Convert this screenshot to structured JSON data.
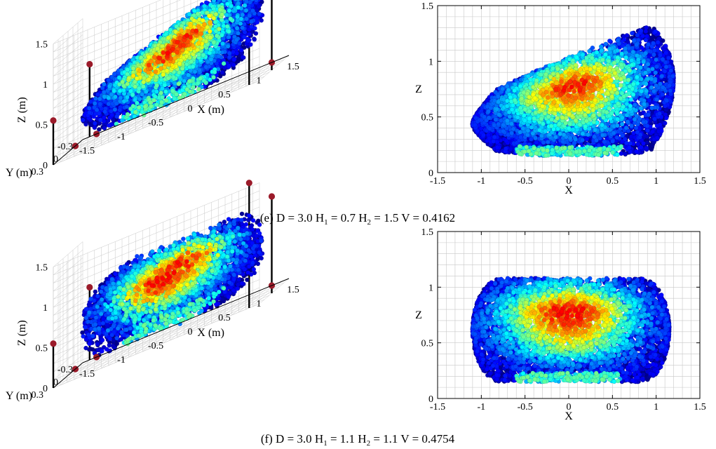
{
  "chart_data": [
    {
      "type": "scatter",
      "view": "3d",
      "x_ticks": [
        "-1.5",
        "-1",
        "-0.5",
        "0",
        "0.5",
        "1",
        "1.5"
      ],
      "y_ticks": [
        "0.3",
        "0",
        "-0.3"
      ],
      "z_ticks": [
        "0",
        "0.5",
        "1",
        "1.5"
      ],
      "xlabel": "X (m)",
      "ylabel": "Y (m)",
      "zlabel": "Z (m)",
      "xlim": [
        -1.5,
        1.5
      ],
      "ylim": [
        -0.3,
        0.3
      ],
      "zlim": [
        0,
        1.5
      ],
      "grid": true,
      "point_cloud": {
        "x_range": [
          -1.1,
          1.15
        ],
        "z_range": [
          0.15,
          1.35
        ],
        "shape": "tilted",
        "hot_center_x": 0.0,
        "hot_center_z": 0.85
      }
    },
    {
      "type": "scatter",
      "view": "xz",
      "x_ticks": [
        "-1.5",
        "-1",
        "-0.5",
        "0",
        "0.5",
        "1",
        "1.5"
      ],
      "z_ticks": [
        "0",
        "0.5",
        "1",
        "1.5"
      ],
      "xlabel": "X",
      "ylabel": "Z",
      "xlim": [
        -1.5,
        1.5
      ],
      "ylim": [
        0,
        1.5
      ],
      "grid": true,
      "point_cloud": {
        "x_range": [
          -1.1,
          1.2
        ],
        "z_range": [
          0.15,
          1.4
        ],
        "shape": "tilted",
        "hot_center_x": 0.0,
        "hot_center_z": 0.85
      }
    },
    {
      "type": "scatter",
      "view": "3d",
      "x_ticks": [
        "-1.5",
        "-1",
        "-0.5",
        "0",
        "0.5",
        "1",
        "1.5"
      ],
      "y_ticks": [
        "0.3",
        "0",
        "-0.3"
      ],
      "z_ticks": [
        "0",
        "0.5",
        "1",
        "1.5"
      ],
      "xlabel": "X (m)",
      "ylabel": "Y (m)",
      "zlabel": "Z (m)",
      "xlim": [
        -1.5,
        1.5
      ],
      "ylim": [
        -0.3,
        0.3
      ],
      "zlim": [
        0,
        1.5
      ],
      "grid": true,
      "point_cloud": {
        "x_range": [
          -1.1,
          1.15
        ],
        "z_range": [
          0.15,
          1.05
        ],
        "shape": "level",
        "hot_center_x": 0.0,
        "hot_center_z": 0.8
      }
    },
    {
      "type": "scatter",
      "view": "xz",
      "x_ticks": [
        "-1.5",
        "-1",
        "-0.5",
        "0",
        "0.5",
        "1",
        "1.5"
      ],
      "z_ticks": [
        "0",
        "0.5",
        "1",
        "1.5"
      ],
      "xlabel": "X",
      "ylabel": "Z",
      "xlim": [
        -1.5,
        1.5
      ],
      "ylim": [
        0,
        1.5
      ],
      "grid": true,
      "point_cloud": {
        "x_range": [
          -1.1,
          1.15
        ],
        "z_range": [
          0.15,
          1.08
        ],
        "shape": "level",
        "hot_center_x": 0.0,
        "hot_center_z": 0.8
      }
    }
  ],
  "captions": [
    {
      "pre": "(e) D = 3.0 H",
      "s1": "1",
      "mid": " = 0.7 H",
      "s2": "2",
      "post": " = 1.5 V = 0.4162"
    },
    {
      "pre": "(f) D = 3.0 H",
      "s1": "1",
      "mid": " = 1.1 H",
      "s2": "2",
      "post": " = 1.1 V = 0.4754"
    }
  ],
  "colors": {
    "colormap": [
      "#00008f",
      "#0000ff",
      "#0080ff",
      "#00ffff",
      "#80ff80",
      "#ffff00",
      "#ff8000",
      "#ff0000"
    ],
    "marker": "#9b1b2a",
    "pole": "#000000",
    "grid": "#c8c8c8"
  }
}
